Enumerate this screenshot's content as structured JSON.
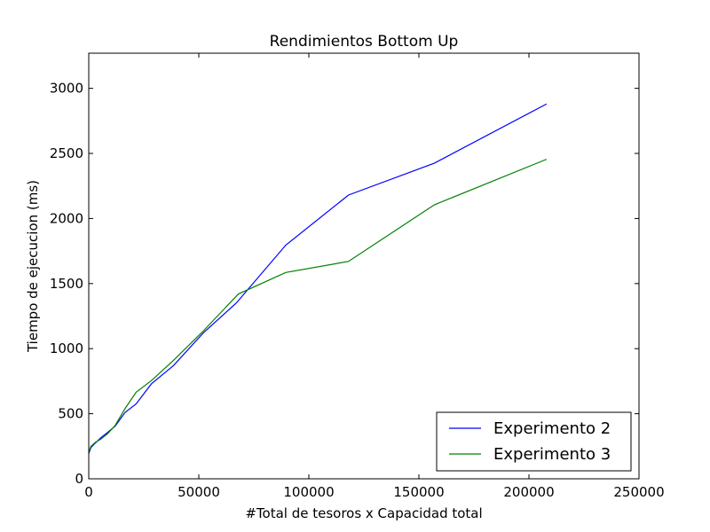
{
  "chart_data": {
    "type": "line",
    "title": "Rendimientos Bottom Up",
    "xlabel": "#Total de tesoros x Capacidad total",
    "ylabel": "Tiempo de ejecucion (ms)",
    "xlim": [
      0,
      250000
    ],
    "ylim": [
      0,
      3270
    ],
    "xticks": [
      0,
      50000,
      100000,
      150000,
      200000,
      250000
    ],
    "xtick_labels": [
      "0",
      "50000",
      "100000",
      "150000",
      "200000",
      "250000"
    ],
    "yticks": [
      0,
      500,
      1000,
      1500,
      2000,
      2500,
      3000
    ],
    "ytick_labels": [
      "0",
      "500",
      "1000",
      "1500",
      "2000",
      "2500",
      "3000"
    ],
    "grid": false,
    "legend_position": "lower-right",
    "series": [
      {
        "name": "Experimento 2",
        "color": "#0000ff",
        "x": [
          0,
          1000,
          3000,
          5500,
          8500,
          12000,
          16500,
          21500,
          28500,
          38500,
          52000,
          67000,
          89500,
          118000,
          157000,
          208000
        ],
        "y": [
          195,
          240,
          275,
          315,
          355,
          405,
          510,
          575,
          730,
          870,
          1120,
          1350,
          1795,
          2180,
          2425,
          2880
        ]
      },
      {
        "name": "Experimento 3",
        "color": "#008000",
        "x": [
          0,
          1000,
          3000,
          5500,
          8500,
          12000,
          16500,
          21500,
          28500,
          38500,
          52000,
          68000,
          89500,
          118000,
          157000,
          208000
        ],
        "y": [
          205,
          250,
          280,
          305,
          345,
          410,
          540,
          665,
          755,
          910,
          1135,
          1420,
          1585,
          1670,
          2105,
          2455
        ]
      }
    ]
  }
}
